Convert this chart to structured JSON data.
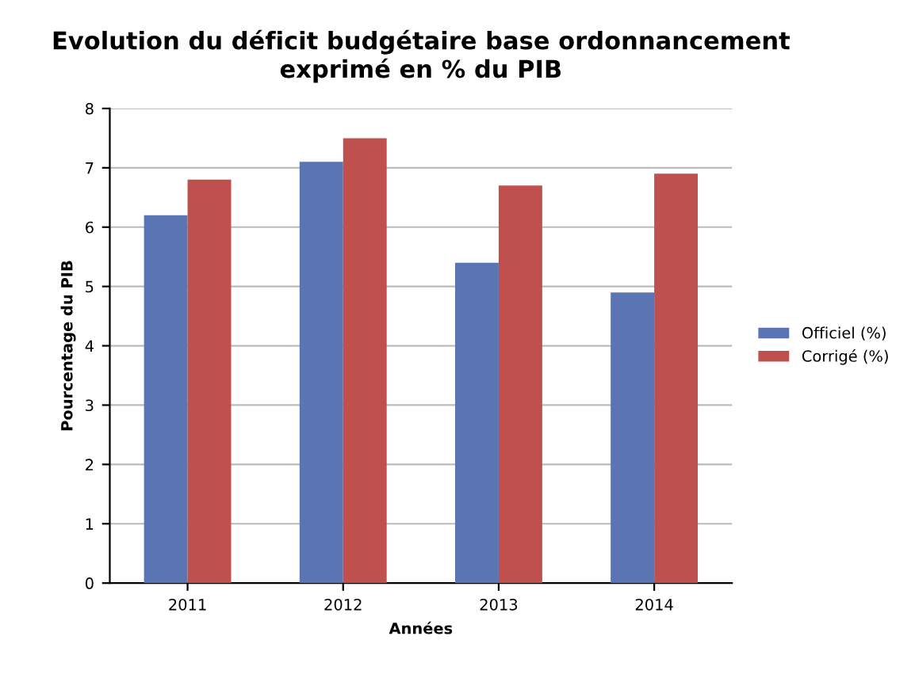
{
  "chart_data": {
    "type": "bar",
    "title": "Evolution du déficit budgétaire base ordonnancement\nexprimé en % du PIB",
    "xlabel": "Années",
    "ylabel": "Pourcentage du PIB",
    "categories": [
      "2011",
      "2012",
      "2013",
      "2014"
    ],
    "series": [
      {
        "name": "Officiel (%)",
        "color": "#5b74b4",
        "values": [
          6.2,
          7.1,
          5.4,
          4.9
        ]
      },
      {
        "name": "Corrigé (%)",
        "color": "#bf504d",
        "values": [
          6.8,
          7.5,
          6.7,
          6.9
        ]
      }
    ],
    "ylim": [
      0,
      8
    ],
    "yticks": [
      0,
      1,
      2,
      3,
      4,
      5,
      6,
      7,
      8
    ],
    "grid": "y",
    "legend": "right"
  }
}
